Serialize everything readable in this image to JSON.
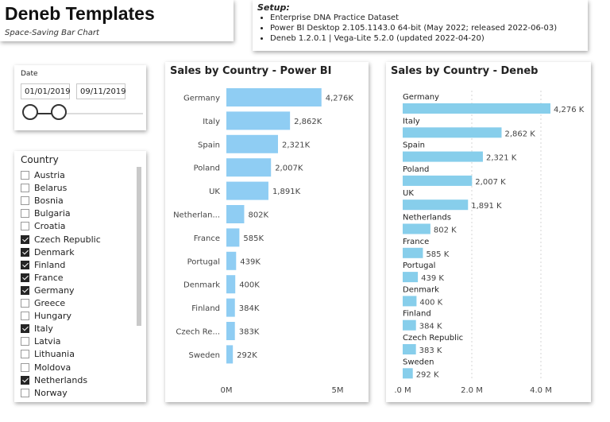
{
  "header": {
    "title": "Deneb Templates",
    "subtitle": "Space-Saving Bar Chart"
  },
  "setup": {
    "heading": "Setup:",
    "items": [
      "Enterprise DNA Practice Dataset",
      "Power BI Desktop 2.105.1143.0 64-bit (May 2022; released 2022-06-03)",
      "Deneb 1.2.0.1 | Vega-Lite 5.2.0 (updated 2022-04-20)"
    ]
  },
  "date_slicer": {
    "label": "Date",
    "start": "01/01/2019",
    "end": "09/11/2019"
  },
  "country_slicer": {
    "header": "Country",
    "items": [
      {
        "name": "Austria",
        "checked": false
      },
      {
        "name": "Belarus",
        "checked": false
      },
      {
        "name": "Bosnia",
        "checked": false
      },
      {
        "name": "Bulgaria",
        "checked": false
      },
      {
        "name": "Croatia",
        "checked": false
      },
      {
        "name": "Czech Republic",
        "checked": true
      },
      {
        "name": "Denmark",
        "checked": true
      },
      {
        "name": "Finland",
        "checked": true
      },
      {
        "name": "France",
        "checked": true
      },
      {
        "name": "Germany",
        "checked": true
      },
      {
        "name": "Greece",
        "checked": false
      },
      {
        "name": "Hungary",
        "checked": false
      },
      {
        "name": "Italy",
        "checked": true
      },
      {
        "name": "Latvia",
        "checked": false
      },
      {
        "name": "Lithuania",
        "checked": false
      },
      {
        "name": "Moldova",
        "checked": false
      },
      {
        "name": "Netherlands",
        "checked": true
      },
      {
        "name": "Norway",
        "checked": false
      }
    ]
  },
  "chart_data": [
    {
      "type": "bar",
      "orientation": "horizontal",
      "title": "Sales by Country - Power BI",
      "categories": [
        "Germany",
        "Italy",
        "Spain",
        "Poland",
        "UK",
        "Netherlan...",
        "France",
        "Portugal",
        "Denmark",
        "Finland",
        "Czech Re...",
        "Sweden"
      ],
      "values": [
        4276,
        2862,
        2321,
        2007,
        1891,
        802,
        585,
        439,
        400,
        384,
        383,
        292
      ],
      "data_labels": [
        "4,276K",
        "2,862K",
        "2,321K",
        "2,007K",
        "1,891K",
        "802K",
        "585K",
        "439K",
        "400K",
        "384K",
        "383K",
        "292K"
      ],
      "xlim": [
        0,
        5000
      ],
      "xticks": [
        {
          "value": 0,
          "label": "0M"
        },
        {
          "value": 5000,
          "label": "5M"
        }
      ],
      "grid": false,
      "bar_color": "#8fcdf3"
    },
    {
      "type": "bar",
      "orientation": "horizontal",
      "title": "Sales by Country - Deneb",
      "categories": [
        "Germany",
        "Italy",
        "Spain",
        "Poland",
        "UK",
        "Netherlands",
        "France",
        "Portugal",
        "Denmark",
        "Finland",
        "Czech Republic",
        "Sweden"
      ],
      "values": [
        4276,
        2862,
        2321,
        2007,
        1891,
        802,
        585,
        439,
        400,
        384,
        383,
        292
      ],
      "data_labels": [
        "4,276 K",
        "2,862 K",
        "2,321 K",
        "2,007 K",
        "1,891 K",
        "802 K",
        "585 K",
        "439 K",
        "400 K",
        "384 K",
        "383 K",
        "292 K"
      ],
      "xlim": [
        0,
        4276
      ],
      "xticks": [
        {
          "value": 0,
          "label": ".0 M"
        },
        {
          "value": 2000,
          "label": "2.0 M"
        },
        {
          "value": 4000,
          "label": "4.0 M"
        }
      ],
      "grid": true,
      "bar_color": "#87ceeb"
    }
  ]
}
